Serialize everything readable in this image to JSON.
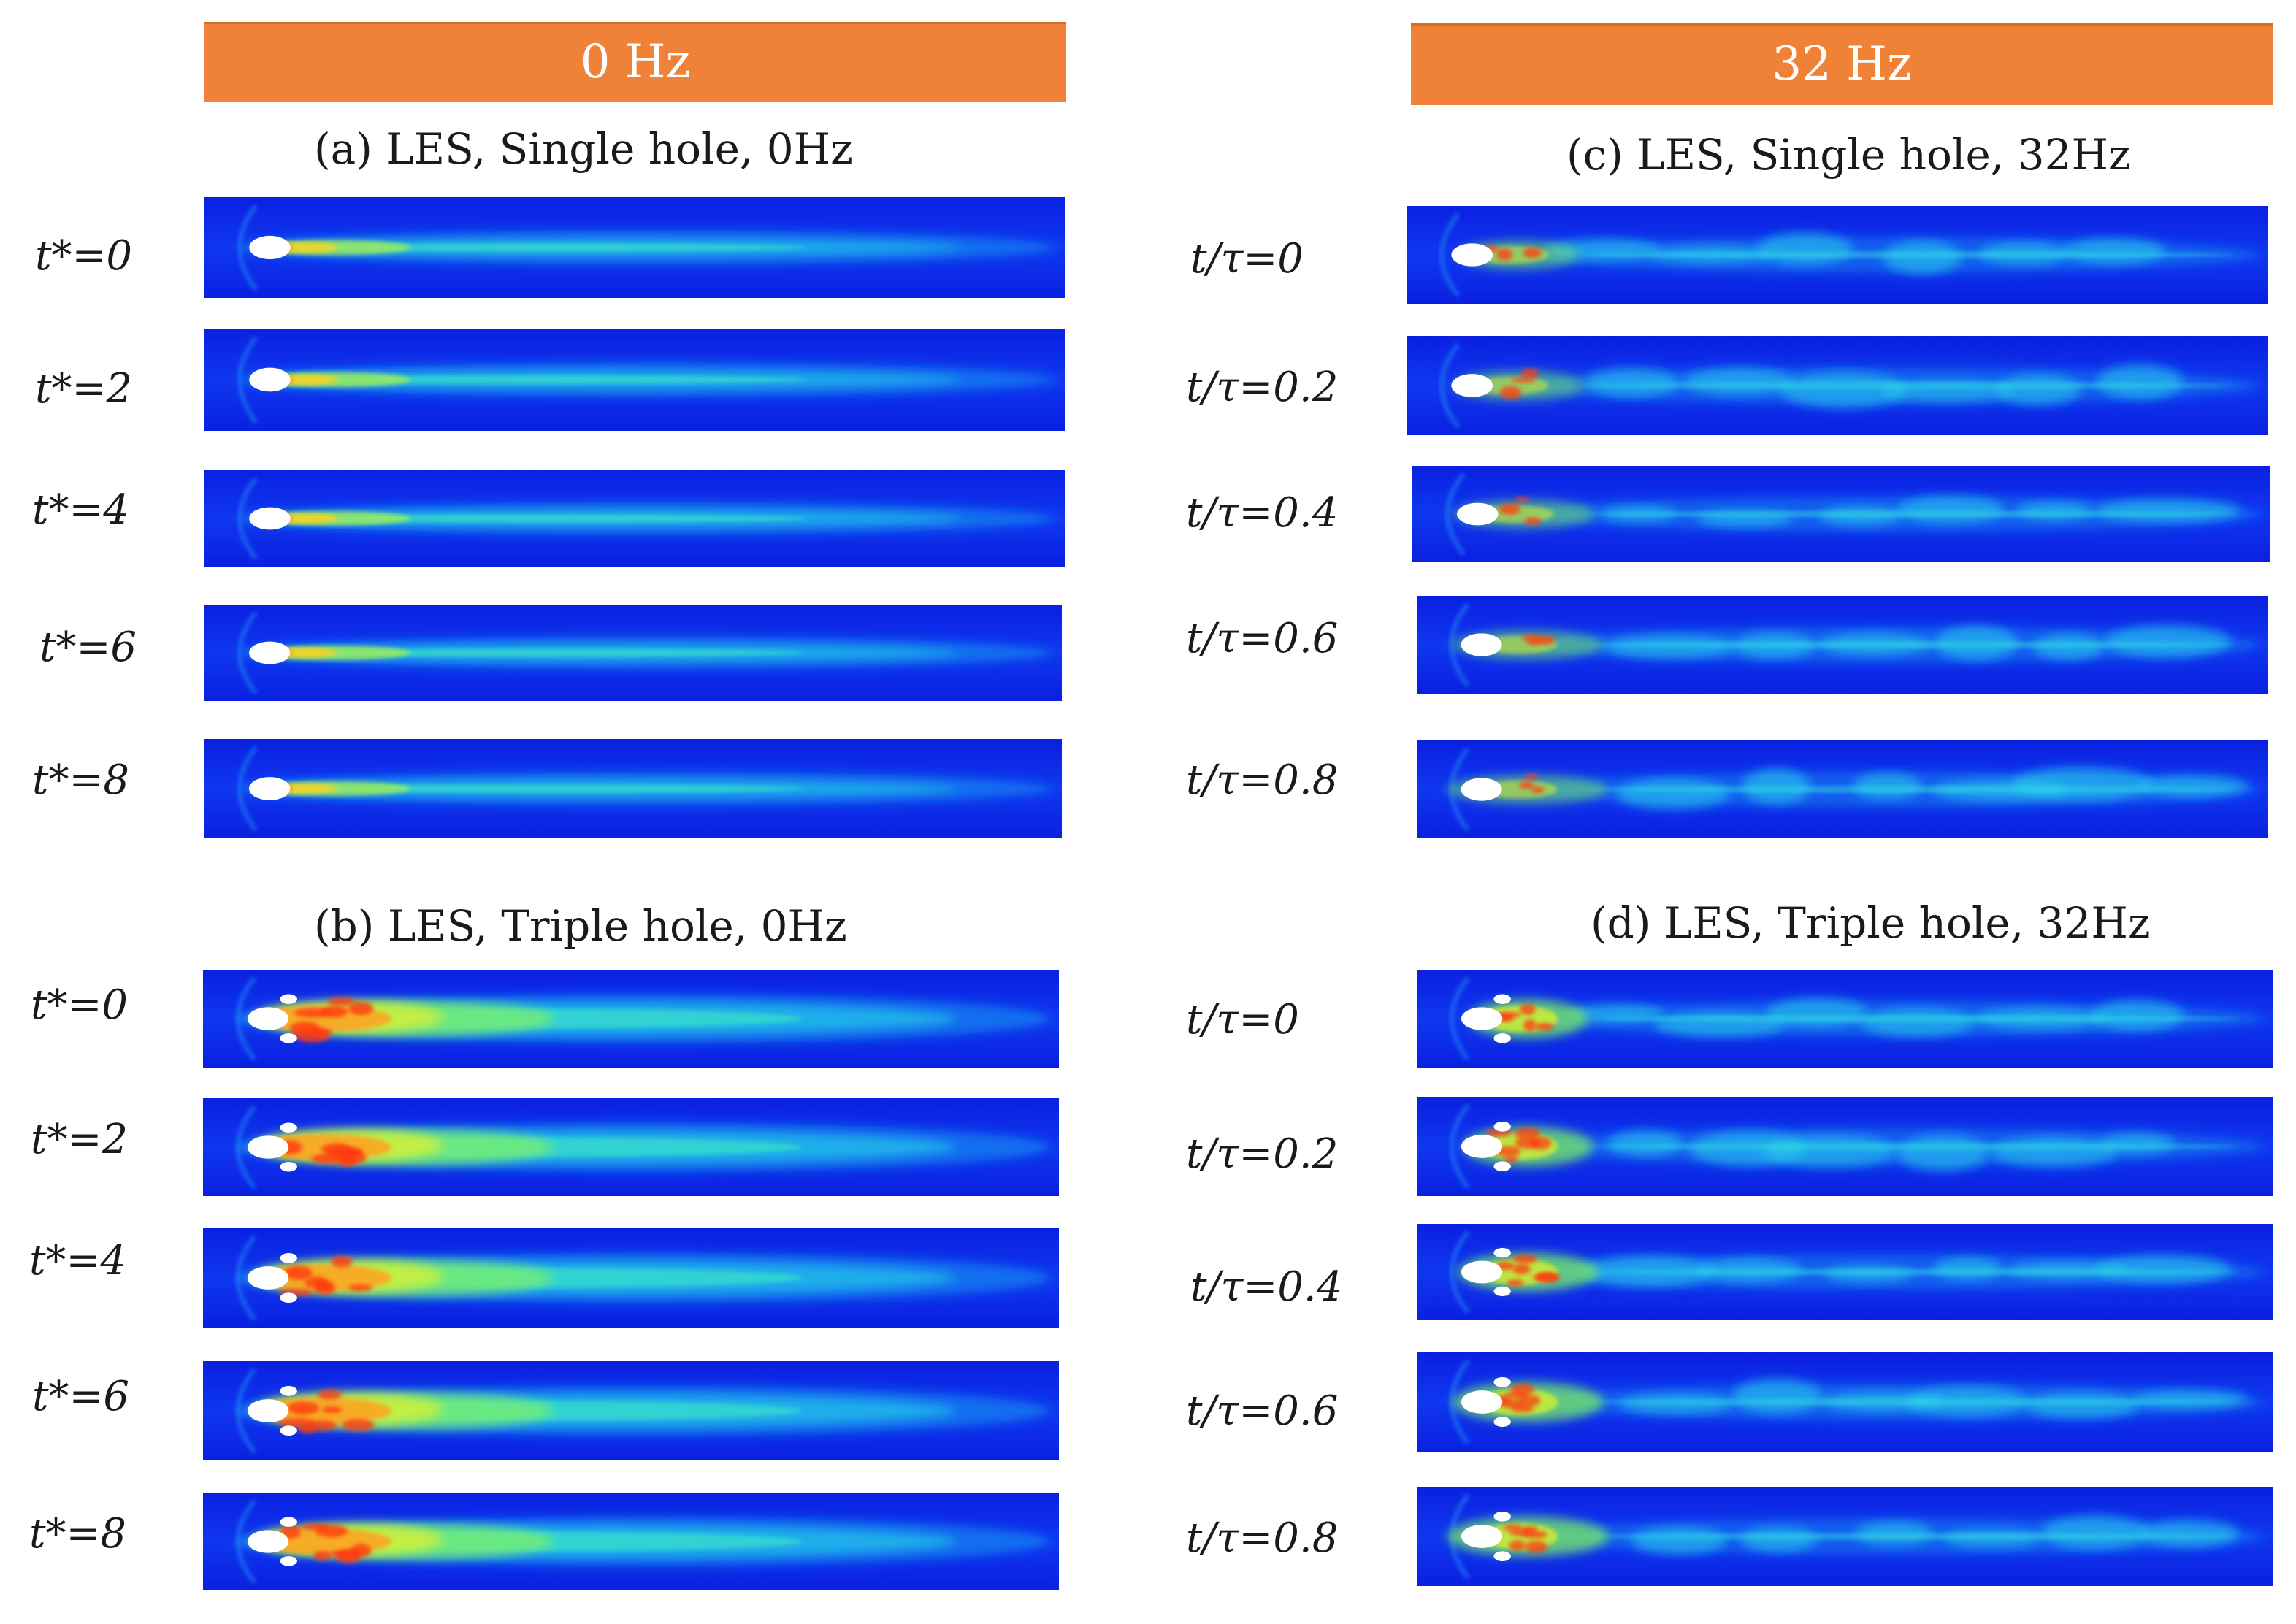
{
  "header": {
    "left_banner": "0 Hz",
    "right_banner": "32 Hz"
  },
  "colors": {
    "banner": "#ef8236",
    "field_background": "#0b26e6"
  },
  "panels": {
    "a": {
      "caption": "(a) LES, Single hole, 0Hz",
      "times": [
        "t*=0",
        "t*=2",
        "t*=4",
        "t*=6",
        "t*=8"
      ]
    },
    "b": {
      "caption": "(b) LES, Triple hole, 0Hz",
      "times": [
        "t*=0",
        "t*=2",
        "t*=4",
        "t*=6",
        "t*=8"
      ]
    },
    "c": {
      "caption": "(c) LES, Single hole, 32Hz",
      "times": [
        "t/τ=0",
        "t/τ=0.2",
        "t/τ=0.4",
        "t/τ=0.6",
        "t/τ=0.8"
      ]
    },
    "d": {
      "caption": "(d) LES, Triple hole, 32Hz",
      "times": [
        "t/τ=0",
        "t/τ=0.2",
        "t/τ=0.4",
        "t/τ=0.6",
        "t/τ=0.8"
      ]
    }
  }
}
